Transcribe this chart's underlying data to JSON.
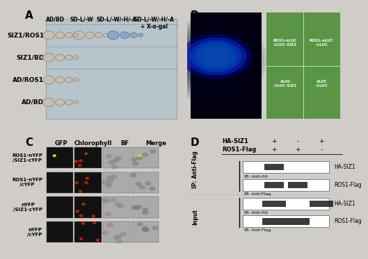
{
  "bg_color": "#d0ccc8",
  "panel_bg": "#c8c4c0",
  "white": "#ffffff",
  "black": "#000000",
  "title_A": "A",
  "title_B": "B",
  "title_C": "C",
  "title_D": "D",
  "panel_A": {
    "rows": [
      "SIZ1/ROS1",
      "SIZ1/BD",
      "AD/ROS1",
      "AD/BD"
    ],
    "cols": [
      "AD/BD",
      "SD-L/-W",
      "SD-L/-W/-H/-A",
      "SD-L/-W/-H/-A\n+ X-α-gal"
    ],
    "col_fontsize": 7,
    "row_fontsize": 7.5,
    "bg": "#b8c4cc"
  },
  "panel_B": {
    "luc_image_bg": "#000820",
    "leaf_bg": "#4a7a3a",
    "labels": [
      "ROS1-nLUC",
      "ROS1-nLUC",
      "/cLUC-SIZ1",
      "/cLUC",
      "nLUC",
      "nLUC",
      "/cLUC-SIZ1",
      "/cLUC"
    ],
    "label_fontsize": 5.5
  },
  "panel_C": {
    "channel_labels": [
      "GFP",
      "Chlorophyll",
      "BF",
      "Merge"
    ],
    "row_labels": [
      "ROS1-nYFP\n/SIZ1-cYFP",
      "ROS1-nYFP\n/cYFP",
      "nYFP\n/SIZ1-cYFP",
      "nYFP\n/cYFP"
    ],
    "label_fontsize": 6,
    "col_fontsize": 6.5
  },
  "panel_D": {
    "header_labels": [
      "HA-SIZ1",
      "ROS1-Flag"
    ],
    "header_plus_minus": [
      [
        "+",
        "-",
        "+"
      ],
      [
        "+",
        "+",
        "-"
      ]
    ],
    "section_labels": [
      "IP: Anti-Flag",
      "Input"
    ],
    "band_labels": [
      "HA-SIZ1",
      "ROS1-Flag",
      "HA-SIZ1",
      "ROS1-Flag"
    ],
    "ib_labels": [
      "IB: Anti-HA",
      "IB: Anti-Flag",
      "IB: Anti-HA",
      "IB: Anti-Flag"
    ],
    "label_fontsize": 6
  }
}
